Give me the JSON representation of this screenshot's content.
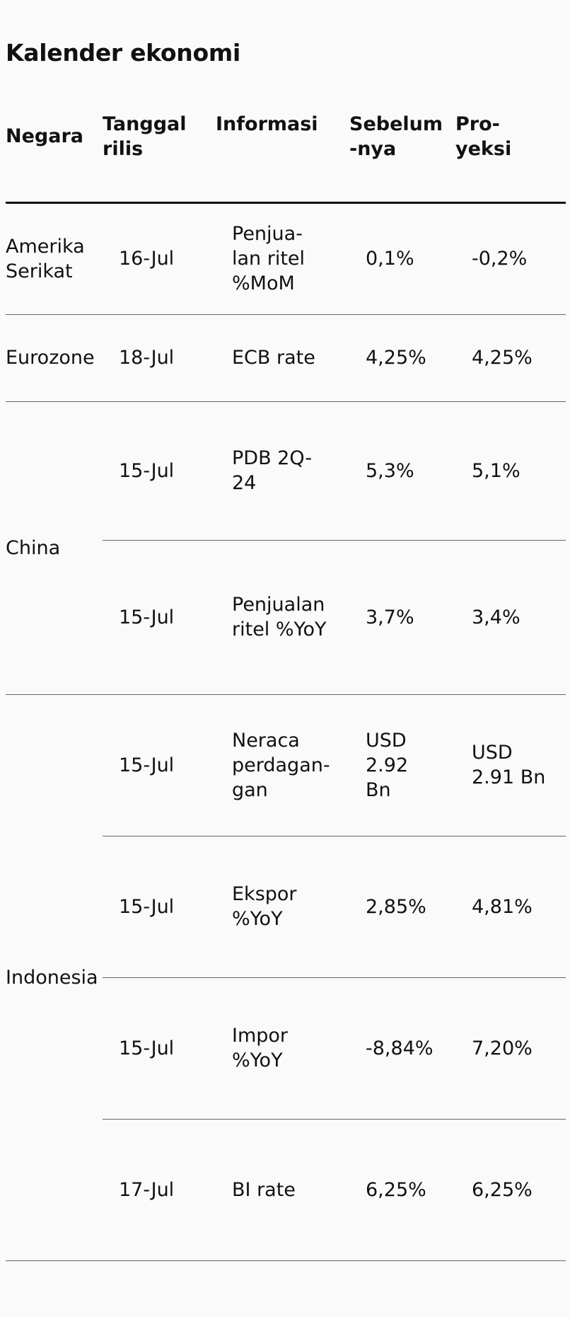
{
  "title": "Kalender ekonomi",
  "headers": {
    "country": "Negara",
    "release_date": "Tanggal\nrilis",
    "info": "Informasi",
    "previous": "Sebelum\n-nya",
    "projection": "Pro-\nyeksi"
  },
  "groups": [
    {
      "country": "Amerika\nSerikat",
      "rows": [
        {
          "date": "16-Jul",
          "info": "Penjua-\nlan ritel\n%MoM",
          "previous": "0,1%",
          "projection": "-0,2%"
        }
      ]
    },
    {
      "country": "Eurozone",
      "rows": [
        {
          "date": "18-Jul",
          "info": "ECB rate",
          "previous": "4,25%",
          "projection": "4,25%"
        }
      ]
    },
    {
      "country": "China",
      "rows": [
        {
          "date": "15-Jul",
          "info": "PDB 2Q-\n24",
          "previous": "5,3%",
          "projection": "5,1%"
        },
        {
          "date": "15-Jul",
          "info": "Penjualan\nritel %YoY",
          "previous": "3,7%",
          "projection": "3,4%"
        }
      ]
    },
    {
      "country": "Indonesia",
      "rows": [
        {
          "date": "15-Jul",
          "info": "Neraca\nperdagan-\ngan",
          "previous": "USD\n2.92\nBn",
          "projection": "USD\n2.91 Bn"
        },
        {
          "date": "15-Jul",
          "info": "Ekspor\n%YoY",
          "previous": "2,85%",
          "projection": "4,81%"
        },
        {
          "date": "15-Jul",
          "info": "Impor\n%YoY",
          "previous": "-8,84%",
          "projection": "7,20%"
        },
        {
          "date": "17-Jul",
          "info": "BI rate",
          "previous": "6,25%",
          "projection": "6,25%"
        }
      ]
    }
  ]
}
